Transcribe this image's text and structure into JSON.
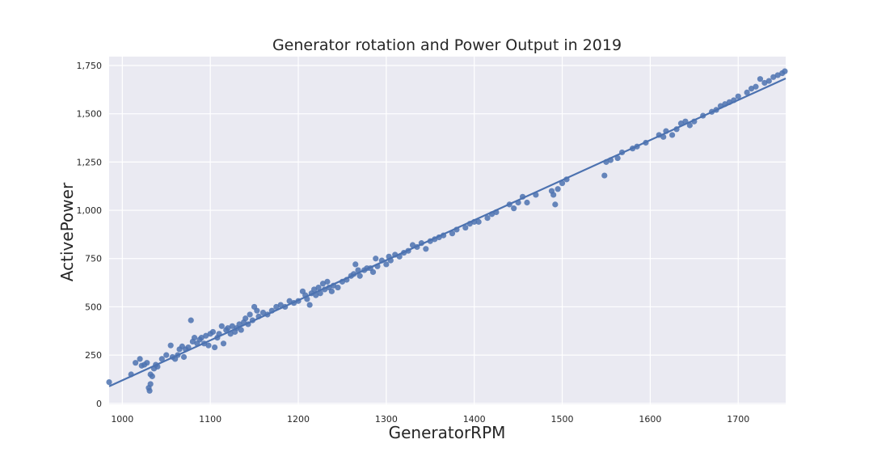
{
  "chart_data": {
    "type": "scatter",
    "title": "Generator rotation and Power Output in 2019",
    "xlabel": "GeneratorRPM",
    "ylabel": "ActivePower",
    "color": "#4c72b0",
    "grid": true,
    "xlim": [
      985,
      1754
    ],
    "ylim": [
      -5,
      1796
    ],
    "xticks": [
      1000,
      1100,
      1200,
      1300,
      1400,
      1500,
      1600,
      1700
    ],
    "yticks": [
      0,
      250,
      500,
      750,
      {
        "value": 1000,
        "label": "1,000"
      },
      {
        "value": 1250,
        "label": "1,250"
      },
      {
        "value": 1500,
        "label": "1,500"
      },
      {
        "value": 1750,
        "label": "1,750"
      }
    ],
    "fit": {
      "x": [
        985,
        1754
      ],
      "y": [
        88,
        1683
      ]
    },
    "x": [
      985,
      1010,
      1015,
      1020,
      1022,
      1025,
      1028,
      1030,
      1031,
      1032,
      1032,
      1034,
      1036,
      1038,
      1040,
      1045,
      1050,
      1055,
      1057,
      1060,
      1063,
      1065,
      1068,
      1070,
      1072,
      1075,
      1078,
      1080,
      1082,
      1085,
      1088,
      1090,
      1093,
      1095,
      1098,
      1100,
      1103,
      1105,
      1108,
      1110,
      1113,
      1115,
      1118,
      1120,
      1123,
      1125,
      1128,
      1130,
      1133,
      1135,
      1138,
      1140,
      1143,
      1145,
      1148,
      1150,
      1153,
      1155,
      1160,
      1165,
      1170,
      1175,
      1180,
      1185,
      1190,
      1195,
      1200,
      1205,
      1208,
      1210,
      1213,
      1215,
      1218,
      1220,
      1223,
      1225,
      1228,
      1230,
      1233,
      1235,
      1238,
      1240,
      1245,
      1250,
      1255,
      1260,
      1263,
      1265,
      1268,
      1270,
      1275,
      1278,
      1282,
      1285,
      1288,
      1290,
      1295,
      1300,
      1303,
      1305,
      1310,
      1315,
      1320,
      1325,
      1330,
      1335,
      1340,
      1345,
      1350,
      1355,
      1360,
      1365,
      1375,
      1380,
      1390,
      1395,
      1400,
      1405,
      1415,
      1420,
      1425,
      1440,
      1445,
      1450,
      1455,
      1460,
      1470,
      1488,
      1490,
      1492,
      1495,
      1500,
      1505,
      1548,
      1550,
      1555,
      1563,
      1568,
      1580,
      1585,
      1595,
      1610,
      1615,
      1618,
      1625,
      1630,
      1635,
      1640,
      1645,
      1650,
      1660,
      1670,
      1675,
      1680,
      1685,
      1690,
      1695,
      1700,
      1710,
      1715,
      1720,
      1725,
      1730,
      1735,
      1740,
      1745,
      1750,
      1753
    ],
    "y": [
      110,
      150,
      210,
      230,
      195,
      200,
      210,
      80,
      65,
      100,
      150,
      140,
      180,
      200,
      190,
      230,
      250,
      300,
      240,
      230,
      250,
      280,
      295,
      240,
      280,
      290,
      430,
      320,
      340,
      310,
      330,
      340,
      310,
      350,
      300,
      360,
      370,
      290,
      340,
      360,
      400,
      310,
      380,
      390,
      360,
      400,
      370,
      390,
      410,
      380,
      420,
      440,
      410,
      460,
      430,
      500,
      480,
      450,
      470,
      460,
      480,
      500,
      510,
      500,
      530,
      520,
      530,
      580,
      560,
      540,
      510,
      570,
      590,
      560,
      600,
      570,
      620,
      590,
      630,
      600,
      580,
      610,
      600,
      630,
      640,
      660,
      670,
      720,
      690,
      660,
      690,
      700,
      700,
      680,
      750,
      710,
      740,
      720,
      760,
      740,
      770,
      760,
      780,
      790,
      820,
      810,
      830,
      800,
      840,
      850,
      860,
      870,
      880,
      900,
      910,
      930,
      940,
      940,
      960,
      980,
      990,
      1030,
      1010,
      1040,
      1070,
      1040,
      1080,
      1100,
      1080,
      1030,
      1110,
      1140,
      1160,
      1180,
      1250,
      1260,
      1270,
      1300,
      1320,
      1330,
      1350,
      1390,
      1380,
      1410,
      1390,
      1420,
      1450,
      1460,
      1440,
      1460,
      1490,
      1510,
      1520,
      1540,
      1550,
      1560,
      1570,
      1590,
      1610,
      1630,
      1640,
      1680,
      1660,
      1670,
      1690,
      1700,
      1710,
      1720
    ]
  }
}
